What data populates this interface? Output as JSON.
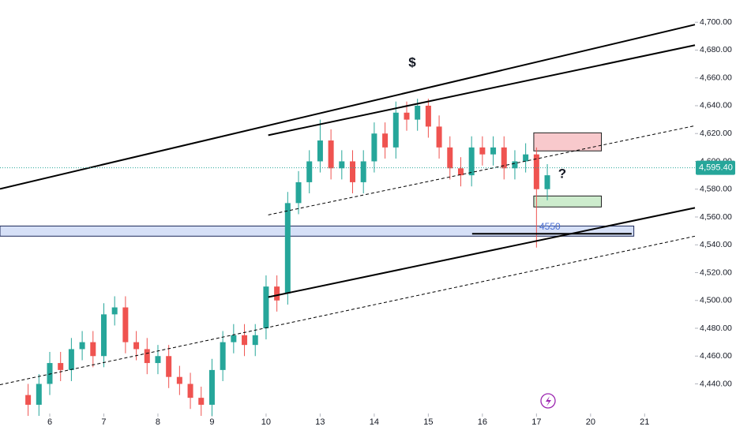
{
  "chart_data": {
    "type": "candlestick",
    "x": [
      0.6,
      0.8,
      1.0,
      1.2,
      1.4,
      1.6,
      1.8,
      2.0,
      2.2,
      2.4,
      2.6,
      2.8,
      3.0,
      3.2,
      3.4,
      3.6,
      3.8,
      4.0,
      4.2,
      4.4,
      4.6,
      4.8,
      5.0,
      5.2,
      5.4,
      5.6,
      5.8,
      6.0,
      6.2,
      6.4,
      6.6,
      6.8,
      7.0,
      7.2,
      7.4,
      7.6,
      7.8,
      8.0,
      8.2,
      8.4,
      8.6,
      8.8,
      9.0,
      9.2,
      9.4,
      9.6,
      9.8,
      10.0,
      10.2
    ],
    "open": [
      4432,
      4425,
      4440,
      4455,
      4450,
      4465,
      4470,
      4460,
      4490,
      4495,
      4470,
      4465,
      4455,
      4460,
      4445,
      4440,
      4430,
      4425,
      4450,
      4470,
      4475,
      4468,
      4480,
      4510,
      4505,
      4570,
      4585,
      4600,
      4615,
      4595,
      4600,
      4585,
      4600,
      4620,
      4610,
      4635,
      4630,
      4640,
      4625,
      4610,
      4595,
      4590,
      4610,
      4605,
      4610,
      4595,
      4600,
      4605,
      4580
    ],
    "high": [
      4440,
      4447,
      4463,
      4463,
      4473,
      4478,
      4478,
      4498,
      4503,
      4503,
      4478,
      4473,
      4468,
      4468,
      4453,
      4448,
      4438,
      4458,
      4478,
      4483,
      4483,
      4483,
      4518,
      4518,
      4578,
      4593,
      4608,
      4630,
      4623,
      4608,
      4608,
      4608,
      4628,
      4628,
      4643,
      4643,
      4645,
      4645,
      4633,
      4618,
      4603,
      4618,
      4618,
      4618,
      4618,
      4608,
      4613,
      4610,
      4598
    ],
    "low": [
      4417,
      4417,
      4432,
      4442,
      4442,
      4457,
      4452,
      4452,
      4482,
      4462,
      4457,
      4447,
      4447,
      4437,
      4432,
      4422,
      4417,
      4417,
      4442,
      4462,
      4460,
      4460,
      4472,
      4492,
      4497,
      4562,
      4577,
      4592,
      4587,
      4587,
      4577,
      4577,
      4592,
      4602,
      4602,
      4622,
      4622,
      4617,
      4602,
      4587,
      4582,
      4582,
      4597,
      4597,
      4587,
      4587,
      4592,
      4538,
      4572
    ],
    "close": [
      4425,
      4440,
      4455,
      4450,
      4465,
      4470,
      4460,
      4490,
      4495,
      4470,
      4465,
      4455,
      4460,
      4445,
      4440,
      4430,
      4425,
      4450,
      4470,
      4475,
      4468,
      4475,
      4510,
      4500,
      4570,
      4585,
      4600,
      4615,
      4595,
      4600,
      4585,
      4600,
      4620,
      4610,
      4635,
      4630,
      4640,
      4625,
      4610,
      4595,
      4590,
      4610,
      4605,
      4610,
      4595,
      4600,
      4605,
      4580,
      4590
    ],
    "up_color": "#26a69a",
    "down_color": "#ef5350",
    "xlim": [
      0.08,
      12.93
    ],
    "xticks": [
      {
        "value": 1,
        "label": "6"
      },
      {
        "value": 2,
        "label": "7"
      },
      {
        "value": 3,
        "label": "8"
      },
      {
        "value": 4,
        "label": "9"
      },
      {
        "value": 5,
        "label": "10"
      },
      {
        "value": 6,
        "label": "13"
      },
      {
        "value": 7,
        "label": "14"
      },
      {
        "value": 8,
        "label": "15"
      },
      {
        "value": 9,
        "label": "16"
      },
      {
        "value": 10,
        "label": "17"
      },
      {
        "value": 11,
        "label": "20"
      },
      {
        "value": 12,
        "label": "21"
      }
    ],
    "ylim": [
      4421,
      4716
    ],
    "yticks": [
      {
        "value": 4440,
        "label": "4,440.00"
      },
      {
        "value": 4460,
        "label": "4,460.00"
      },
      {
        "value": 4480,
        "label": "4,480.00"
      },
      {
        "value": 4500,
        "label": "4,500.00"
      },
      {
        "value": 4520,
        "label": "4,520.00"
      },
      {
        "value": 4540,
        "label": "4,540.00"
      },
      {
        "value": 4560,
        "label": "4,560.00"
      },
      {
        "value": 4580,
        "label": "4,580.00"
      },
      {
        "value": 4600,
        "label": "4,600.00"
      },
      {
        "value": 4620,
        "label": "4,620.00"
      },
      {
        "value": 4640,
        "label": "4,640.00"
      },
      {
        "value": 4660,
        "label": "4,660.00"
      },
      {
        "value": 4680,
        "label": "4,680.00"
      },
      {
        "value": 4700,
        "label": "4,700.00"
      }
    ],
    "last_price": {
      "value": 4595.4,
      "label": "4,595.40"
    },
    "trendlines": [
      {
        "style": "solid",
        "points": [
          [
            0.08,
            4580.2
          ],
          [
            12.93,
            4698.3
          ]
        ]
      },
      {
        "style": "solid",
        "points": [
          [
            5.04,
            4618.8
          ],
          [
            12.93,
            4683.5
          ]
        ]
      },
      {
        "style": "solid",
        "points": [
          [
            5.04,
            4502.4
          ],
          [
            12.93,
            4566.6
          ]
        ]
      },
      {
        "style": "dashed",
        "points": [
          [
            5.04,
            4561.5
          ],
          [
            12.93,
            4625.6
          ]
        ]
      },
      {
        "style": "dashed",
        "points": [
          [
            0.08,
            4439.4
          ],
          [
            12.93,
            4546.2
          ]
        ]
      },
      {
        "style": "solid",
        "points": [
          [
            8.81,
            4547.9
          ],
          [
            11.76,
            4547.9
          ]
        ]
      }
    ],
    "zones": [
      {
        "x": [
          0.08,
          11.8
        ],
        "y": [
          4546.2,
          4553.5
        ],
        "color": "#d6e0f7",
        "border": "#1e2a5a"
      },
      {
        "x": [
          9.95,
          11.2
        ],
        "y": [
          4607.5,
          4620.5
        ],
        "color": "#f8c9cc",
        "border": "#1e1e1e"
      },
      {
        "x": [
          9.95,
          11.2
        ],
        "y": [
          4567.2,
          4575.1
        ],
        "color": "#cdeccd",
        "border": "#1e1e1e"
      }
    ],
    "annotations": [
      "$",
      "?",
      "4550"
    ]
  }
}
